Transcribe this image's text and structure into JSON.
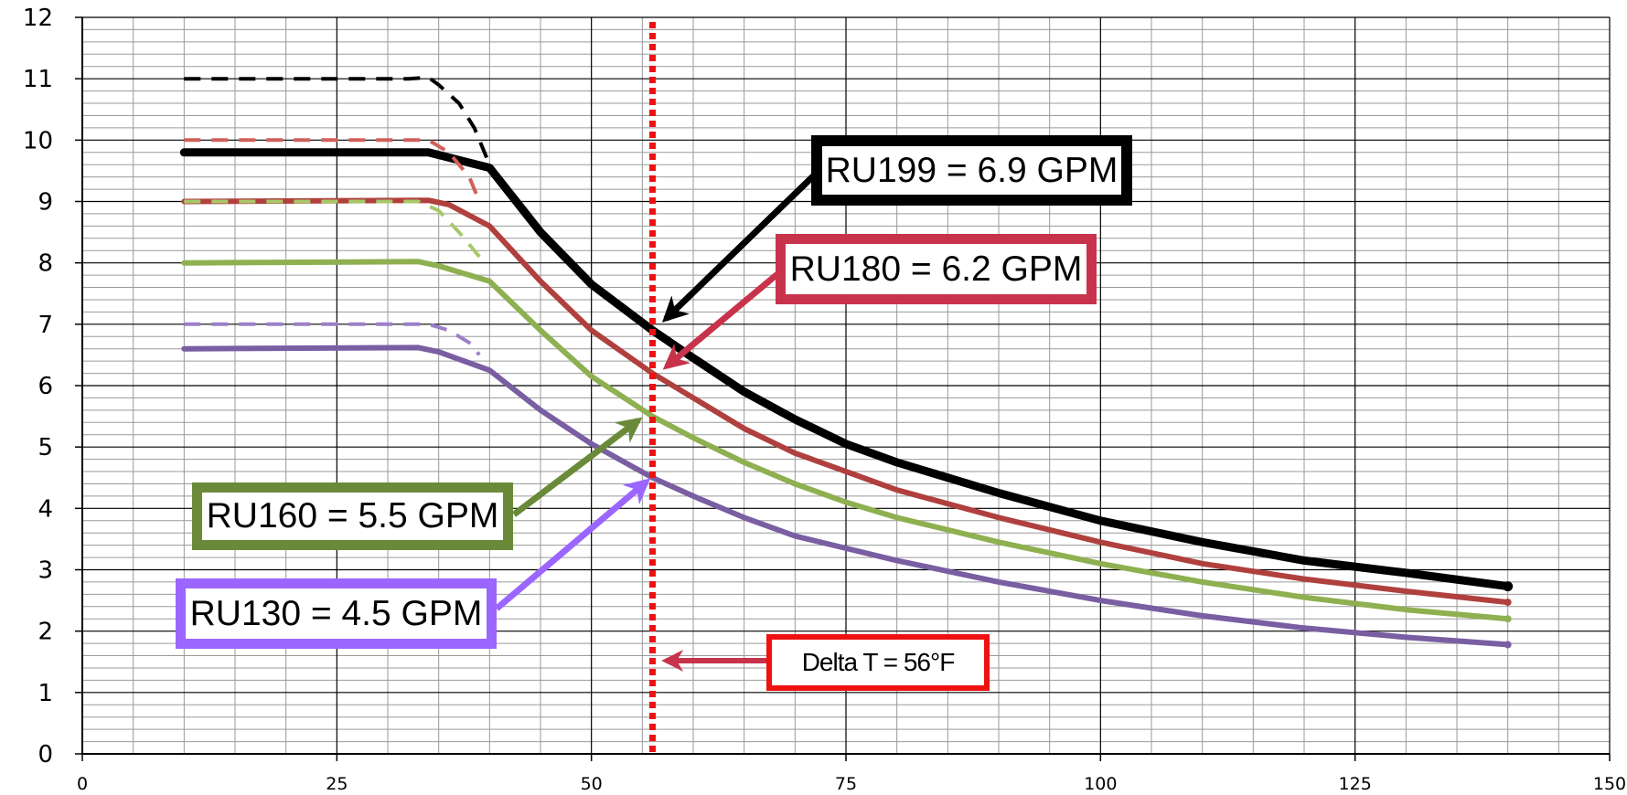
{
  "chart_data": {
    "type": "line",
    "title": "",
    "xlabel": "",
    "ylabel": "",
    "xlim": [
      0,
      150
    ],
    "ylim": [
      0,
      12
    ],
    "x_ticks": [
      "0",
      "25",
      "50",
      "75",
      "100",
      "125",
      "150"
    ],
    "y_ticks": [
      "0",
      "1",
      "2",
      "3",
      "4",
      "5",
      "6",
      "7",
      "8",
      "9",
      "10",
      "11",
      "12"
    ],
    "grid": true,
    "legend": "none",
    "series": [
      {
        "name": "",
        "color": "#000000",
        "style": "solid",
        "points": [
          [
            10,
            9.8
          ],
          [
            34,
            9.8
          ],
          [
            40,
            9.55
          ],
          [
            45,
            8.5
          ],
          [
            50,
            7.65
          ],
          [
            56,
            6.9
          ],
          [
            60,
            6.45
          ],
          [
            65,
            5.9
          ],
          [
            70,
            5.45
          ],
          [
            75,
            5.05
          ],
          [
            80,
            4.75
          ],
          [
            90,
            4.25
          ],
          [
            100,
            3.8
          ],
          [
            110,
            3.45
          ],
          [
            120,
            3.15
          ],
          [
            130,
            2.95
          ],
          [
            140,
            2.73
          ]
        ]
      },
      {
        "name": "",
        "color": "#b0403e",
        "style": "solid",
        "points": [
          [
            10,
            9.0
          ],
          [
            34,
            9.02
          ],
          [
            36,
            8.95
          ],
          [
            40,
            8.6
          ],
          [
            45,
            7.7
          ],
          [
            50,
            6.9
          ],
          [
            56,
            6.2
          ],
          [
            60,
            5.8
          ],
          [
            65,
            5.3
          ],
          [
            70,
            4.9
          ],
          [
            75,
            4.6
          ],
          [
            80,
            4.3
          ],
          [
            90,
            3.85
          ],
          [
            100,
            3.45
          ],
          [
            110,
            3.1
          ],
          [
            120,
            2.85
          ],
          [
            130,
            2.65
          ],
          [
            140,
            2.47
          ]
        ]
      },
      {
        "name": "",
        "color": "#8eb050",
        "style": "solid",
        "points": [
          [
            10,
            8.0
          ],
          [
            33,
            8.02
          ],
          [
            35,
            7.95
          ],
          [
            40,
            7.7
          ],
          [
            45,
            6.9
          ],
          [
            50,
            6.15
          ],
          [
            56,
            5.5
          ],
          [
            60,
            5.15
          ],
          [
            65,
            4.75
          ],
          [
            70,
            4.4
          ],
          [
            75,
            4.1
          ],
          [
            80,
            3.85
          ],
          [
            90,
            3.45
          ],
          [
            100,
            3.1
          ],
          [
            110,
            2.8
          ],
          [
            120,
            2.55
          ],
          [
            130,
            2.35
          ],
          [
            140,
            2.2
          ]
        ]
      },
      {
        "name": "",
        "color": "#7a5ea2",
        "style": "solid",
        "points": [
          [
            10,
            6.6
          ],
          [
            33,
            6.62
          ],
          [
            35,
            6.55
          ],
          [
            40,
            6.25
          ],
          [
            45,
            5.6
          ],
          [
            50,
            5.05
          ],
          [
            56,
            4.5
          ],
          [
            60,
            4.2
          ],
          [
            65,
            3.85
          ],
          [
            70,
            3.55
          ],
          [
            75,
            3.35
          ],
          [
            80,
            3.15
          ],
          [
            90,
            2.8
          ],
          [
            100,
            2.5
          ],
          [
            110,
            2.25
          ],
          [
            120,
            2.05
          ],
          [
            130,
            1.9
          ],
          [
            140,
            1.78
          ]
        ]
      },
      {
        "name": "",
        "color": "#000000",
        "style": "dashed",
        "points": [
          [
            10,
            11.0
          ],
          [
            32,
            11.0
          ],
          [
            34,
            11.02
          ],
          [
            35,
            10.9
          ],
          [
            37,
            10.6
          ],
          [
            38.5,
            10.2
          ],
          [
            40,
            9.6
          ]
        ]
      },
      {
        "name": "",
        "color": "#d0605a",
        "style": "dashed",
        "points": [
          [
            10,
            10.0
          ],
          [
            34,
            10.0
          ],
          [
            36,
            9.8
          ],
          [
            38,
            9.4
          ],
          [
            39,
            9.0
          ]
        ]
      },
      {
        "name": "",
        "color": "#a8c86a",
        "style": "dashed",
        "points": [
          [
            10,
            9.0
          ],
          [
            33,
            9.0
          ],
          [
            35,
            8.85
          ],
          [
            37,
            8.5
          ],
          [
            39,
            8.1
          ]
        ]
      },
      {
        "name": "",
        "color": "#9b80c8",
        "style": "dashed",
        "points": [
          [
            10,
            7.0
          ],
          [
            34,
            7.0
          ],
          [
            36,
            6.9
          ],
          [
            38,
            6.7
          ],
          [
            39,
            6.5
          ]
        ]
      }
    ],
    "reference_line": {
      "x": 56,
      "color": "#ee1111"
    },
    "annotations": [
      {
        "text": "RU199 = 6.9 GPM",
        "border_color": "#000000",
        "points_to": [
          56,
          6.9
        ]
      },
      {
        "text": "RU180 = 6.2 GPM",
        "border_color": "#c8334c",
        "points_to": [
          56,
          6.2
        ]
      },
      {
        "text": "RU160 = 5.5 GPM",
        "border_color": "#6a8a3a",
        "points_to": [
          56,
          5.5
        ]
      },
      {
        "text": "RU130 = 4.5 GPM",
        "border_color": "#9b66ff",
        "points_to": [
          56,
          4.5
        ]
      },
      {
        "text": "Delta T = 56°F",
        "border_color": "#ee1111",
        "points_to": [
          56,
          1.5
        ]
      }
    ]
  }
}
